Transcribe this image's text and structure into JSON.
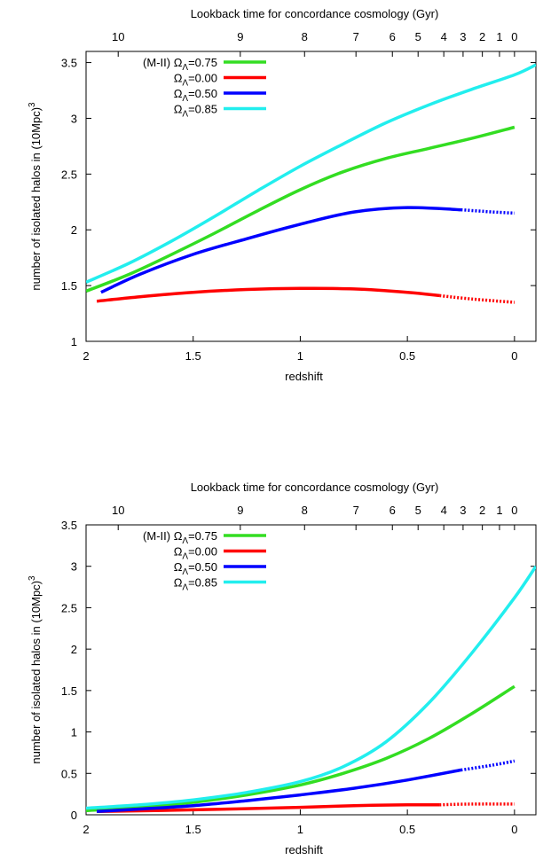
{
  "chart_data": [
    {
      "type": "line",
      "title": "",
      "top_xlabel": "Lookback time for concordance cosmology (Gyr)",
      "top_ticks": [
        "10",
        "9",
        "8",
        "7",
        "6",
        "5",
        "4",
        "3",
        "2",
        "1",
        "0"
      ],
      "xlabel": "redshift",
      "ylabel": "number of isolated halos in (10Mpc)",
      "ylabel_sup": "3",
      "xlim": [
        2.0,
        -0.1
      ],
      "ylim": [
        1.0,
        3.6
      ],
      "xticks": [
        2,
        1.5,
        1,
        0.5,
        0
      ],
      "xtick_labels": [
        "2",
        "1.5",
        "1",
        "0.5",
        "0"
      ],
      "yticks": [
        1,
        1.5,
        2,
        2.5,
        3,
        3.5
      ],
      "ytick_labels": [
        "1",
        "1.5",
        "2",
        "2.5",
        "3",
        "3.5"
      ],
      "legend_position": "top-left",
      "series": [
        {
          "name": "(M-II) Ω_Λ=0.75",
          "legend_prefix": "(M-II)",
          "legend_value": "=0.75",
          "color": "#33dd22",
          "x": [
            2.0,
            1.8,
            1.6,
            1.4,
            1.2,
            1.0,
            0.8,
            0.6,
            0.4,
            0.2,
            0.0
          ],
          "y": [
            1.45,
            1.6,
            1.78,
            1.97,
            2.17,
            2.36,
            2.52,
            2.64,
            2.73,
            2.82,
            2.92
          ]
        },
        {
          "name": "Ω_Λ=0.00",
          "legend_value": "=0.00",
          "color": "#ff0000",
          "dashed_from": 0.35,
          "x": [
            1.95,
            1.75,
            1.5,
            1.25,
            1.0,
            0.75,
            0.5,
            0.35,
            0.2,
            0.0
          ],
          "y": [
            1.36,
            1.4,
            1.44,
            1.465,
            1.475,
            1.47,
            1.44,
            1.41,
            1.38,
            1.35
          ]
        },
        {
          "name": "Ω_Λ=0.50",
          "legend_value": "=0.50",
          "color": "#0000ff",
          "dashed_from": 0.25,
          "x": [
            1.93,
            1.75,
            1.5,
            1.25,
            1.0,
            0.75,
            0.5,
            0.25,
            0.1,
            0.0
          ],
          "y": [
            1.44,
            1.6,
            1.78,
            1.92,
            2.05,
            2.16,
            2.2,
            2.18,
            2.16,
            2.15
          ]
        },
        {
          "name": "Ω_Λ=0.85",
          "legend_value": "=0.85",
          "color": "#22eeee",
          "x": [
            2.0,
            1.8,
            1.6,
            1.4,
            1.2,
            1.0,
            0.8,
            0.6,
            0.4,
            0.2,
            0.0,
            -0.1
          ],
          "y": [
            1.53,
            1.7,
            1.9,
            2.12,
            2.35,
            2.57,
            2.77,
            2.96,
            3.12,
            3.26,
            3.39,
            3.48
          ]
        }
      ]
    },
    {
      "type": "line",
      "title": "",
      "top_xlabel": "Lookback time for concordance cosmology (Gyr)",
      "top_ticks": [
        "10",
        "9",
        "8",
        "7",
        "6",
        "5",
        "4",
        "3",
        "2",
        "1",
        "0"
      ],
      "xlabel": "redshift",
      "ylabel": "number of isolated halos in (10Mpc)",
      "ylabel_sup": "3",
      "xlim": [
        2.0,
        -0.1
      ],
      "ylim": [
        0.0,
        3.5
      ],
      "xticks": [
        2,
        1.5,
        1,
        0.5,
        0
      ],
      "xtick_labels": [
        "2",
        "1.5",
        "1",
        "0.5",
        "0"
      ],
      "yticks": [
        0,
        0.5,
        1,
        1.5,
        2,
        2.5,
        3,
        3.5
      ],
      "ytick_labels": [
        "0",
        "0.5",
        "1",
        "1.5",
        "2",
        "2.5",
        "3",
        "3.5"
      ],
      "legend_position": "top-left",
      "series": [
        {
          "name": "(M-II) Ω_Λ=0.75",
          "legend_prefix": "(M-II)",
          "legend_value": "=0.75",
          "color": "#33dd22",
          "x": [
            2.0,
            1.75,
            1.5,
            1.25,
            1.0,
            0.8,
            0.6,
            0.4,
            0.2,
            0.0
          ],
          "y": [
            0.05,
            0.09,
            0.15,
            0.24,
            0.36,
            0.5,
            0.68,
            0.92,
            1.22,
            1.55
          ]
        },
        {
          "name": "Ω_Λ=0.00",
          "legend_value": "=0.00",
          "color": "#ff0000",
          "dashed_from": 0.35,
          "x": [
            1.95,
            1.5,
            1.0,
            0.75,
            0.5,
            0.35,
            0.2,
            0.0
          ],
          "y": [
            0.04,
            0.06,
            0.09,
            0.11,
            0.12,
            0.12,
            0.13,
            0.13
          ]
        },
        {
          "name": "Ω_Λ=0.50",
          "legend_value": "=0.50",
          "color": "#0000ff",
          "dashed_from": 0.25,
          "x": [
            1.95,
            1.75,
            1.5,
            1.25,
            1.0,
            0.75,
            0.5,
            0.25,
            0.1,
            0.0
          ],
          "y": [
            0.04,
            0.07,
            0.11,
            0.17,
            0.24,
            0.32,
            0.42,
            0.54,
            0.6,
            0.65
          ]
        },
        {
          "name": "Ω_Λ=0.85",
          "legend_value": "=0.85",
          "color": "#22eeee",
          "x": [
            2.0,
            1.75,
            1.5,
            1.25,
            1.0,
            0.8,
            0.6,
            0.4,
            0.2,
            0.0,
            -0.1
          ],
          "y": [
            0.08,
            0.12,
            0.18,
            0.27,
            0.4,
            0.58,
            0.88,
            1.35,
            1.95,
            2.62,
            3.0
          ]
        }
      ]
    }
  ]
}
